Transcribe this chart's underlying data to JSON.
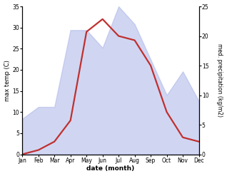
{
  "months": [
    "Jan",
    "Feb",
    "Mar",
    "Apr",
    "May",
    "Jun",
    "Jul",
    "Aug",
    "Sep",
    "Oct",
    "Nov",
    "Dec"
  ],
  "temperature": [
    0,
    1,
    3,
    8,
    29,
    32,
    28,
    27,
    21,
    10,
    4,
    3
  ],
  "precipitation": [
    6,
    8,
    8,
    21,
    21,
    18,
    25,
    22,
    16,
    10,
    14,
    9
  ],
  "temp_color": "#c03030",
  "precip_color": "#aab5e8",
  "precip_alpha": 0.55,
  "temp_ylim": [
    0,
    35
  ],
  "precip_ylim": [
    0,
    25
  ],
  "temp_yticks": [
    0,
    5,
    10,
    15,
    20,
    25,
    30,
    35
  ],
  "precip_yticks": [
    0,
    5,
    10,
    15,
    20,
    25
  ],
  "xlabel": "date (month)",
  "ylabel_left": "max temp (C)",
  "ylabel_right": "med. precipitation (kg/m2)",
  "line_width": 1.6
}
